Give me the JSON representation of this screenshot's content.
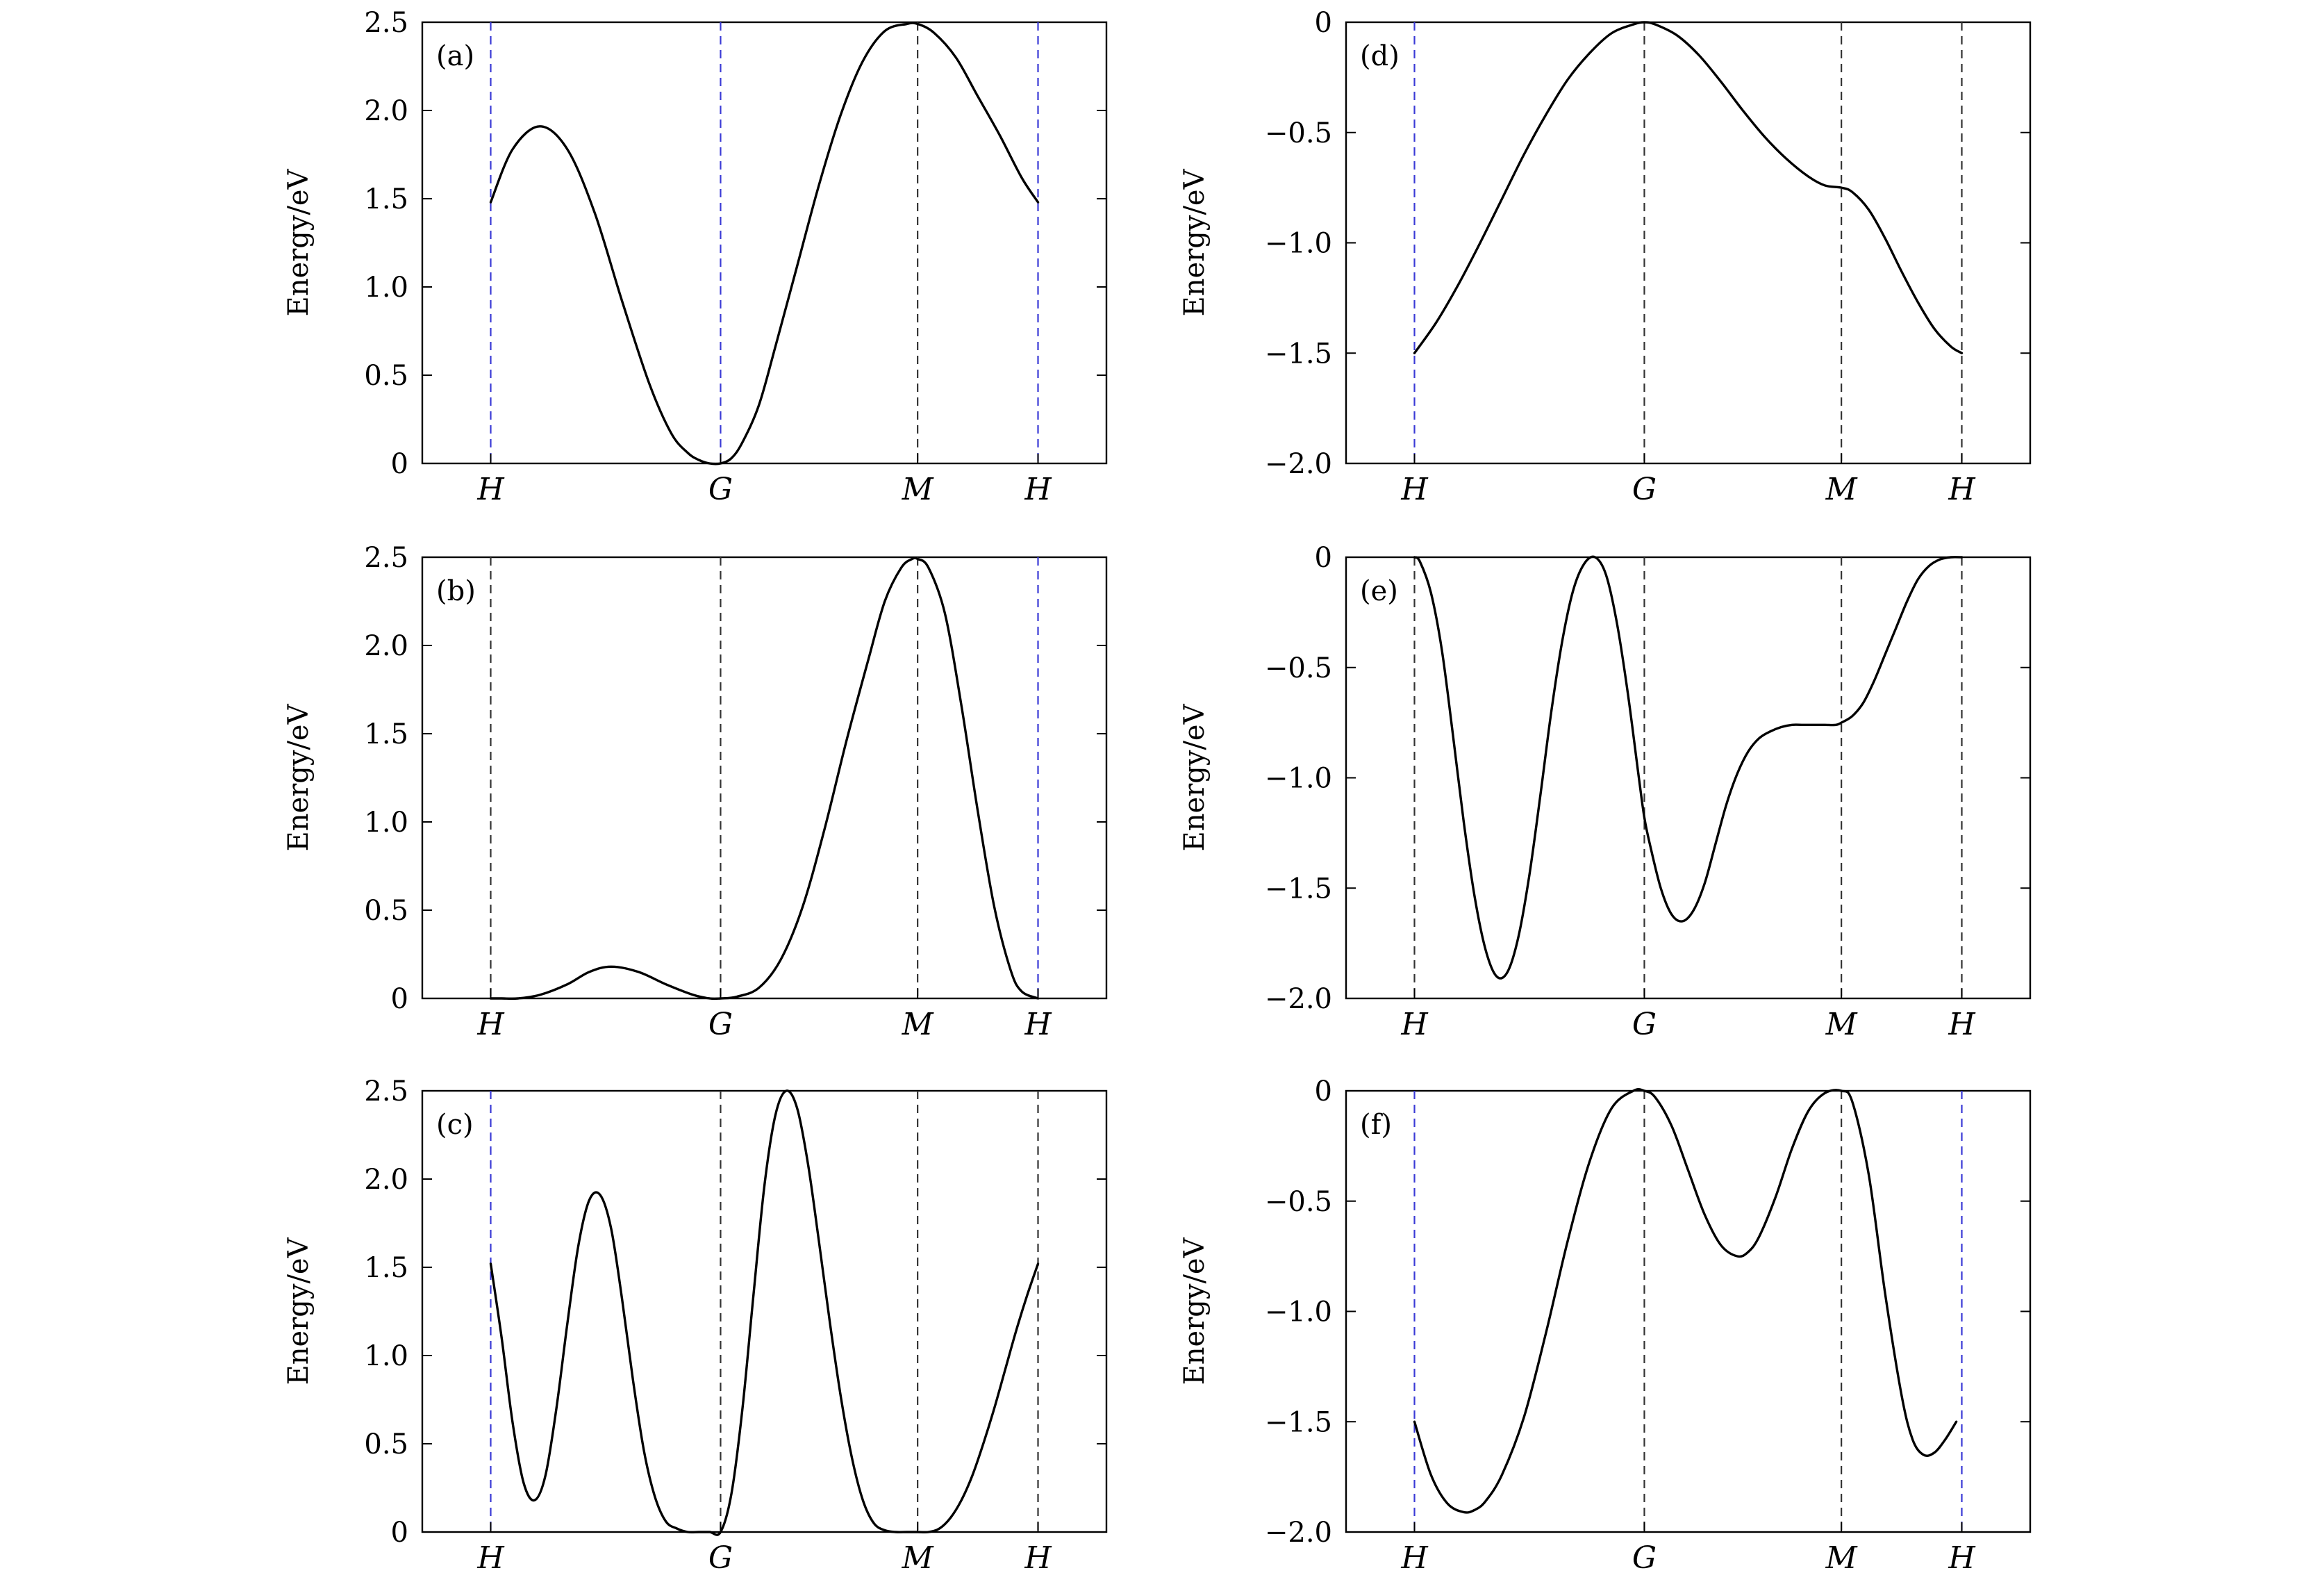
{
  "figure": {
    "background": "#ffffff",
    "curve_color": "#000000",
    "vline_colors": {
      "blue": "#3a3ad6",
      "black": "#333333"
    }
  },
  "chart_data": [
    {
      "type": "line",
      "panel_label": "(a)",
      "ylabel": "Energy/eV",
      "ylim": [
        0,
        2.5
      ],
      "yticks": [
        0,
        0.5,
        1.0,
        1.5,
        2.0,
        2.5
      ],
      "ytick_labels": [
        "0",
        "0.5",
        "1.0",
        "1.5",
        "2.0",
        "2.5"
      ],
      "x_path": [
        "H",
        "G",
        "M",
        "H"
      ],
      "x_ticks": [
        0.0,
        0.42,
        0.78,
        1.0
      ],
      "vline_colors": [
        "blue",
        "blue",
        "black",
        "blue"
      ],
      "grid": false,
      "series": [
        {
          "x": [
            0.0,
            0.04,
            0.09,
            0.14,
            0.19,
            0.24,
            0.29,
            0.33,
            0.36,
            0.38,
            0.4,
            0.42,
            0.44,
            0.46,
            0.49,
            0.52,
            0.56,
            0.6,
            0.64,
            0.68,
            0.72,
            0.76,
            0.78,
            0.81,
            0.85,
            0.89,
            0.93,
            0.97,
            1.0
          ],
          "y": [
            1.48,
            1.78,
            1.91,
            1.78,
            1.42,
            0.92,
            0.45,
            0.17,
            0.06,
            0.02,
            0.0,
            0.0,
            0.03,
            0.12,
            0.33,
            0.66,
            1.12,
            1.58,
            1.98,
            2.28,
            2.45,
            2.49,
            2.49,
            2.44,
            2.3,
            2.08,
            1.86,
            1.62,
            1.48
          ]
        }
      ]
    },
    {
      "type": "line",
      "panel_label": "(b)",
      "ylabel": "Energy/eV",
      "ylim": [
        0,
        2.5
      ],
      "yticks": [
        0,
        0.5,
        1.0,
        1.5,
        2.0,
        2.5
      ],
      "ytick_labels": [
        "0",
        "0.5",
        "1.0",
        "1.5",
        "2.0",
        "2.5"
      ],
      "x_path": [
        "H",
        "G",
        "M",
        "H"
      ],
      "x_ticks": [
        0.0,
        0.42,
        0.78,
        1.0
      ],
      "vline_colors": [
        "black",
        "black",
        "black",
        "blue"
      ],
      "grid": false,
      "series": [
        {
          "x": [
            0.0,
            0.02,
            0.05,
            0.09,
            0.14,
            0.18,
            0.22,
            0.27,
            0.32,
            0.37,
            0.4,
            0.42,
            0.45,
            0.49,
            0.53,
            0.57,
            0.61,
            0.65,
            0.69,
            0.72,
            0.75,
            0.77,
            0.78,
            0.8,
            0.83,
            0.86,
            0.89,
            0.92,
            0.95,
            0.97,
            1.0
          ],
          "y": [
            0.0,
            0.0,
            0.0,
            0.02,
            0.08,
            0.15,
            0.18,
            0.15,
            0.08,
            0.02,
            0.0,
            0.0,
            0.01,
            0.06,
            0.22,
            0.52,
            0.96,
            1.46,
            1.92,
            2.25,
            2.44,
            2.49,
            2.49,
            2.44,
            2.18,
            1.66,
            1.06,
            0.52,
            0.16,
            0.04,
            0.0
          ]
        }
      ]
    },
    {
      "type": "line",
      "panel_label": "(c)",
      "ylabel": "Energy/eV",
      "ylim": [
        0,
        2.5
      ],
      "yticks": [
        0,
        0.5,
        1.0,
        1.5,
        2.0,
        2.5
      ],
      "ytick_labels": [
        "0",
        "0.5",
        "1.0",
        "1.5",
        "2.0",
        "2.5"
      ],
      "x_path": [
        "H",
        "G",
        "M",
        "H"
      ],
      "x_ticks": [
        0.0,
        0.42,
        0.78,
        1.0
      ],
      "vline_colors": [
        "blue",
        "black",
        "black",
        "black"
      ],
      "grid": false,
      "series": [
        {
          "x": [
            0.0,
            0.02,
            0.04,
            0.06,
            0.08,
            0.1,
            0.12,
            0.14,
            0.16,
            0.18,
            0.2,
            0.22,
            0.24,
            0.26,
            0.28,
            0.3,
            0.32,
            0.34,
            0.36,
            0.38,
            0.4,
            0.42,
            0.44,
            0.46,
            0.48,
            0.5,
            0.52,
            0.54,
            0.56,
            0.58,
            0.6,
            0.62,
            0.64,
            0.66,
            0.68,
            0.7,
            0.72,
            0.74,
            0.76,
            0.78,
            0.8,
            0.82,
            0.84,
            0.86,
            0.88,
            0.9,
            0.92,
            0.94,
            0.96,
            0.98,
            1.0
          ],
          "y": [
            1.52,
            1.1,
            0.62,
            0.28,
            0.18,
            0.32,
            0.7,
            1.18,
            1.62,
            1.88,
            1.91,
            1.72,
            1.32,
            0.86,
            0.46,
            0.2,
            0.06,
            0.02,
            0.0,
            0.0,
            0.0,
            0.0,
            0.22,
            0.7,
            1.34,
            1.96,
            2.36,
            2.5,
            2.4,
            2.08,
            1.64,
            1.18,
            0.76,
            0.42,
            0.18,
            0.05,
            0.01,
            0.0,
            0.0,
            0.0,
            0.0,
            0.02,
            0.08,
            0.18,
            0.32,
            0.5,
            0.7,
            0.92,
            1.14,
            1.34,
            1.52
          ]
        }
      ]
    },
    {
      "type": "line",
      "panel_label": "(d)",
      "ylabel": "Energy/eV",
      "ylim": [
        -2.0,
        0
      ],
      "yticks": [
        -2.0,
        -1.5,
        -1.0,
        -0.5,
        0
      ],
      "ytick_labels": [
        "−2.0",
        "−1.5",
        "−1.0",
        "−0.5",
        "0"
      ],
      "x_path": [
        "H",
        "G",
        "M",
        "H"
      ],
      "x_ticks": [
        0.0,
        0.42,
        0.78,
        1.0
      ],
      "vline_colors": [
        "blue",
        "black",
        "black",
        "black"
      ],
      "grid": false,
      "series": [
        {
          "x": [
            0.0,
            0.04,
            0.08,
            0.12,
            0.16,
            0.2,
            0.24,
            0.28,
            0.32,
            0.36,
            0.4,
            0.42,
            0.44,
            0.48,
            0.52,
            0.56,
            0.6,
            0.64,
            0.68,
            0.72,
            0.75,
            0.78,
            0.8,
            0.83,
            0.86,
            0.89,
            0.92,
            0.95,
            0.98,
            1.0
          ],
          "y": [
            -1.5,
            -1.36,
            -1.19,
            -1.0,
            -0.8,
            -0.6,
            -0.42,
            -0.26,
            -0.14,
            -0.05,
            -0.01,
            0.0,
            -0.01,
            -0.06,
            -0.15,
            -0.27,
            -0.4,
            -0.52,
            -0.62,
            -0.7,
            -0.74,
            -0.75,
            -0.77,
            -0.85,
            -0.98,
            -1.13,
            -1.27,
            -1.39,
            -1.47,
            -1.5
          ]
        }
      ]
    },
    {
      "type": "line",
      "panel_label": "(e)",
      "ylabel": "Energy/eV",
      "ylim": [
        -2.0,
        0
      ],
      "yticks": [
        -2.0,
        -1.5,
        -1.0,
        -0.5,
        0
      ],
      "ytick_labels": [
        "−2.0",
        "−1.5",
        "−1.0",
        "−0.5",
        "0"
      ],
      "x_path": [
        "H",
        "G",
        "M",
        "H"
      ],
      "x_ticks": [
        0.0,
        0.42,
        0.78,
        1.0
      ],
      "vline_colors": [
        "black",
        "black",
        "black",
        "black"
      ],
      "grid": false,
      "series": [
        {
          "x": [
            0.0,
            0.01,
            0.03,
            0.05,
            0.07,
            0.09,
            0.11,
            0.13,
            0.15,
            0.17,
            0.19,
            0.21,
            0.23,
            0.25,
            0.27,
            0.29,
            0.31,
            0.33,
            0.35,
            0.37,
            0.39,
            0.41,
            0.42,
            0.43,
            0.45,
            0.47,
            0.49,
            0.51,
            0.53,
            0.55,
            0.57,
            0.59,
            0.61,
            0.63,
            0.65,
            0.67,
            0.69,
            0.71,
            0.73,
            0.75,
            0.77,
            0.78,
            0.8,
            0.82,
            0.84,
            0.86,
            0.88,
            0.9,
            0.92,
            0.94,
            0.96,
            0.98,
            1.0
          ],
          "y": [
            0.0,
            -0.02,
            -0.16,
            -0.42,
            -0.8,
            -1.2,
            -1.54,
            -1.78,
            -1.9,
            -1.88,
            -1.72,
            -1.44,
            -1.08,
            -0.7,
            -0.38,
            -0.15,
            -0.03,
            0.0,
            -0.08,
            -0.3,
            -0.62,
            -1.0,
            -1.18,
            -1.3,
            -1.5,
            -1.62,
            -1.65,
            -1.6,
            -1.48,
            -1.3,
            -1.12,
            -0.98,
            -0.88,
            -0.82,
            -0.79,
            -0.77,
            -0.76,
            -0.76,
            -0.76,
            -0.76,
            -0.76,
            -0.75,
            -0.72,
            -0.66,
            -0.56,
            -0.44,
            -0.32,
            -0.2,
            -0.1,
            -0.04,
            -0.01,
            0.0,
            0.0
          ]
        }
      ]
    },
    {
      "type": "line",
      "panel_label": "(f)",
      "ylabel": "Energy/eV",
      "ylim": [
        -2.0,
        0
      ],
      "yticks": [
        -2.0,
        -1.5,
        -1.0,
        -0.5,
        0
      ],
      "ytick_labels": [
        "−2.0",
        "−1.5",
        "−1.0",
        "−0.5",
        "0"
      ],
      "x_path": [
        "H",
        "G",
        "M",
        "H"
      ],
      "x_ticks": [
        0.0,
        0.42,
        0.78,
        1.0
      ],
      "vline_colors": [
        "blue",
        "black",
        "black",
        "blue"
      ],
      "grid": false,
      "series": [
        {
          "x": [
            0.0,
            0.03,
            0.06,
            0.09,
            0.11,
            0.13,
            0.16,
            0.2,
            0.24,
            0.28,
            0.32,
            0.36,
            0.4,
            0.42,
            0.44,
            0.47,
            0.5,
            0.53,
            0.56,
            0.59,
            0.61,
            0.63,
            0.66,
            0.69,
            0.72,
            0.75,
            0.78,
            0.8,
            0.83,
            0.86,
            0.89,
            0.91,
            0.93,
            0.95,
            0.97,
            0.99
          ],
          "y": [
            -1.5,
            -1.74,
            -1.87,
            -1.91,
            -1.9,
            -1.86,
            -1.74,
            -1.48,
            -1.1,
            -0.68,
            -0.32,
            -0.08,
            0.0,
            0.0,
            -0.03,
            -0.16,
            -0.36,
            -0.56,
            -0.7,
            -0.75,
            -0.73,
            -0.66,
            -0.48,
            -0.26,
            -0.09,
            -0.01,
            0.0,
            -0.05,
            -0.38,
            -0.92,
            -1.38,
            -1.58,
            -1.65,
            -1.64,
            -1.58,
            -1.5
          ]
        }
      ]
    }
  ]
}
